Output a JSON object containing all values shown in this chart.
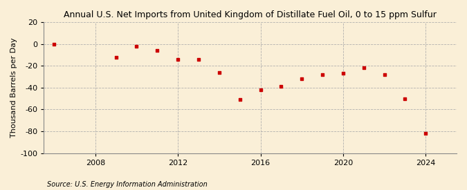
{
  "title": "Annual U.S. Net Imports from United Kingdom of Distillate Fuel Oil, 0 to 15 ppm Sulfur",
  "ylabel": "Thousand Barrels per Day",
  "source": "Source: U.S. Energy Information Administration",
  "background_color": "#faefd7",
  "marker_color": "#cc0000",
  "years": [
    2006,
    2009,
    2010,
    2011,
    2012,
    2013,
    2014,
    2015,
    2016,
    2017,
    2018,
    2019,
    2020,
    2021,
    2022,
    2023,
    2024
  ],
  "values": [
    0,
    -12,
    -2,
    -6,
    -14,
    -14,
    -26,
    -51,
    -42,
    -39,
    -32,
    -28,
    -27,
    -22,
    -28,
    -50,
    -82
  ],
  "ylim": [
    -100,
    20
  ],
  "yticks": [
    -100,
    -80,
    -60,
    -40,
    -20,
    0,
    20
  ],
  "xlim": [
    2005.5,
    2025.5
  ],
  "xticks": [
    2008,
    2012,
    2016,
    2020,
    2024
  ],
  "title_fontsize": 9,
  "tick_fontsize": 8,
  "ylabel_fontsize": 8,
  "source_fontsize": 7
}
